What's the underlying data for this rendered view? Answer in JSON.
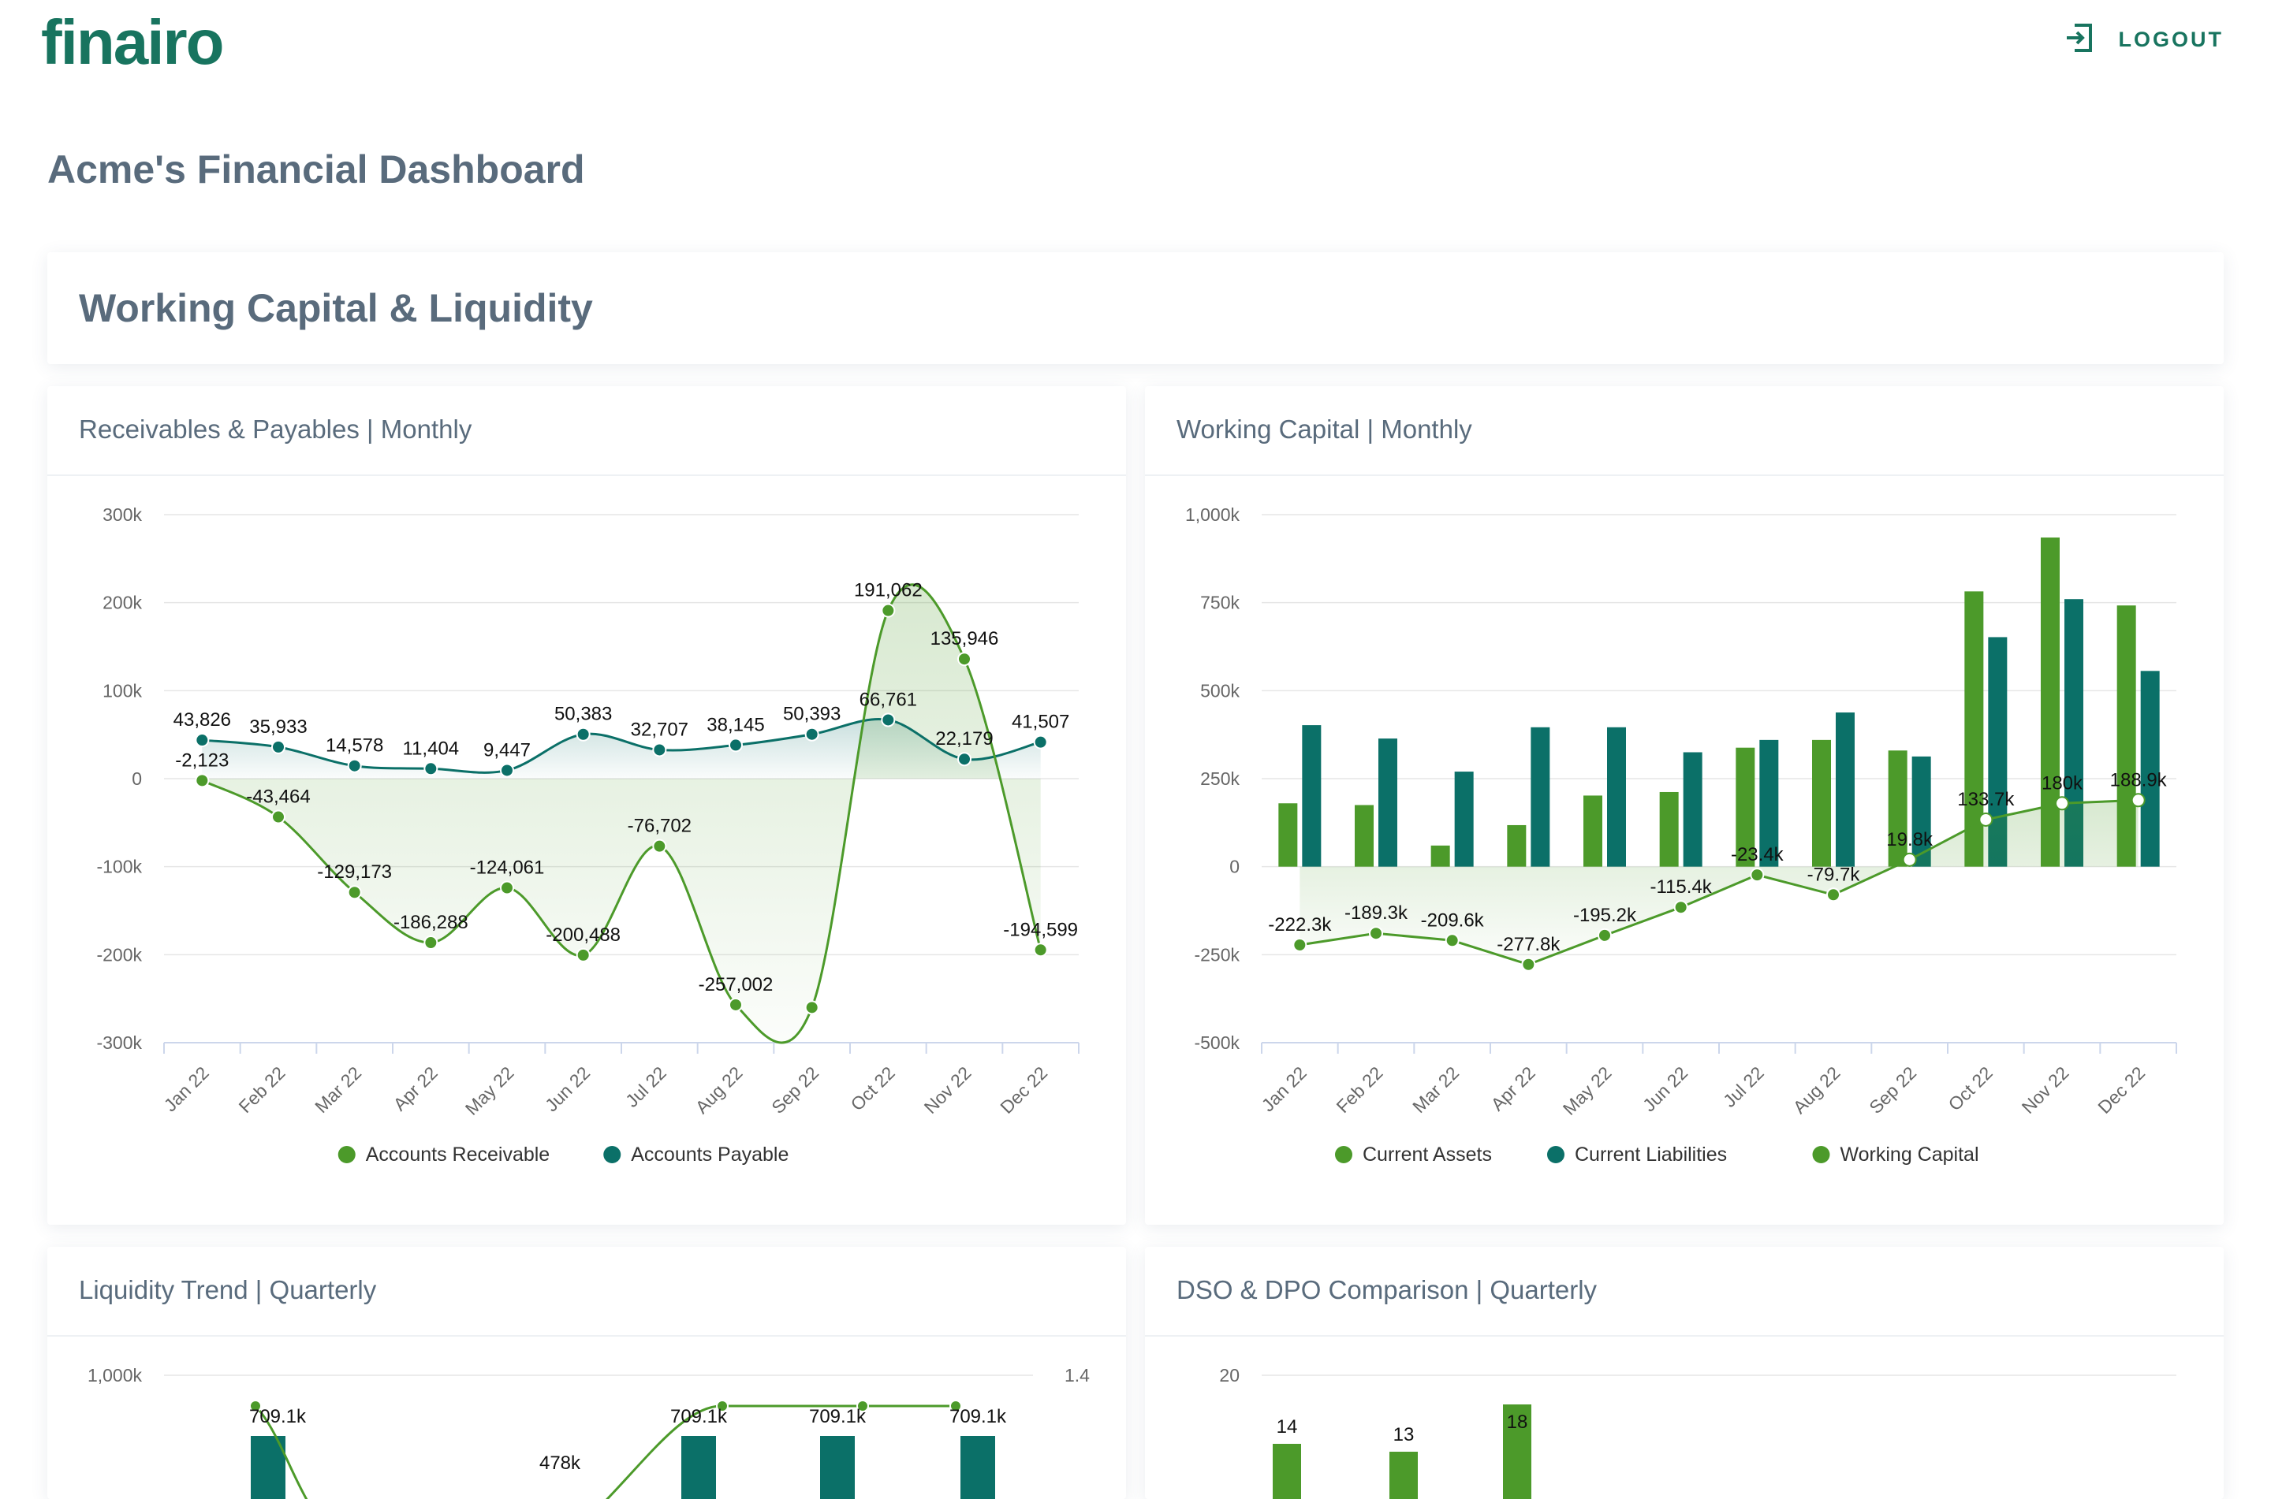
{
  "brand": {
    "logo_text": "finairo"
  },
  "nav": {
    "logout_label": "LOGOUT"
  },
  "page": {
    "title": "Acme's Financial Dashboard"
  },
  "section": {
    "title": "Working Capital & Liquidity"
  },
  "colors": {
    "green": "#4c9a2a",
    "teal": "#0b7068",
    "brand": "#18745f",
    "heading": "#596b7c"
  },
  "cards": {
    "receivables_payables": {
      "title": "Receivables & Payables | Monthly"
    },
    "working_capital": {
      "title": "Working Capital | Monthly"
    },
    "liquidity_trend": {
      "title": "Liquidity Trend | Quarterly"
    },
    "dso_dpo": {
      "title": "DSO & DPO Comparison | Quarterly"
    }
  },
  "chart_data": [
    {
      "id": "receivables_payables",
      "type": "area",
      "title": "Receivables & Payables | Monthly",
      "categories": [
        "Jan 22",
        "Feb 22",
        "Mar 22",
        "Apr 22",
        "May 22",
        "Jun 22",
        "Jul 22",
        "Aug 22",
        "Sep 22",
        "Oct 22",
        "Nov 22",
        "Dec 22"
      ],
      "y_ticks": [
        "300k",
        "200k",
        "100k",
        "0",
        "-100k",
        "-200k",
        "-300k"
      ],
      "ylim": [
        -300000,
        300000
      ],
      "series": [
        {
          "name": "Accounts Receivable",
          "color": "#4c9a2a",
          "values": [
            -2123,
            -43464,
            -129173,
            -186288,
            -124061,
            -200488,
            -76702,
            -257002,
            -260000,
            191062,
            135946,
            -194599
          ],
          "labels": [
            "-2,123",
            "-43,464",
            "-129,173",
            "-186,288",
            "-124,061",
            "-200,488",
            "-76,702",
            "-257,002",
            "",
            "191,062",
            "135,946",
            "-194,599"
          ]
        },
        {
          "name": "Accounts Payable",
          "color": "#0b7068",
          "values": [
            43826,
            35933,
            14578,
            11404,
            9447,
            50383,
            32707,
            38145,
            50393,
            66761,
            22179,
            41507
          ],
          "labels": [
            "43,826",
            "35,933",
            "14,578",
            "11,404",
            "9,447",
            "50,383",
            "32,707",
            "38,145",
            "50,393",
            "66,761",
            "22,179",
            "41,507"
          ]
        }
      ],
      "legend": [
        "Accounts Receivable",
        "Accounts Payable"
      ]
    },
    {
      "id": "working_capital",
      "type": "bar",
      "title": "Working Capital | Monthly",
      "categories": [
        "Jan 22",
        "Feb 22",
        "Mar 22",
        "Apr 22",
        "May 22",
        "Jun 22",
        "Jul 22",
        "Aug 22",
        "Sep 22",
        "Oct 22",
        "Nov 22",
        "Dec 22"
      ],
      "y_ticks": [
        "1,000k",
        "750k",
        "500k",
        "250k",
        "0",
        "-250k",
        "-500k"
      ],
      "ylim": [
        -500,
        1000
      ],
      "series": [
        {
          "name": "Current Assets",
          "color": "#4c9a2a",
          "kind": "bar",
          "values": [
            180,
            175,
            60,
            118,
            202,
            212,
            338,
            360,
            330,
            782,
            935,
            742
          ]
        },
        {
          "name": "Current Liabilities",
          "color": "#0b7068",
          "kind": "bar",
          "values": [
            402,
            364,
            270,
            396,
            396,
            325,
            360,
            438,
            313,
            652,
            760,
            556
          ]
        },
        {
          "name": "Working Capital",
          "color": "#4c9a2a",
          "kind": "line",
          "values": [
            -222.3,
            -189.3,
            -209.6,
            -277.8,
            -195.2,
            -115.4,
            -23.4,
            -79.7,
            19.8,
            133.7,
            180,
            188.9
          ],
          "labels": [
            "-222.3k",
            "-189.3k",
            "-209.6k",
            "-277.8k",
            "-195.2k",
            "-115.4k",
            "-23.4k",
            "-79.7k",
            "19.8k",
            "133.7k",
            "180k",
            "188.9k"
          ]
        }
      ],
      "legend": [
        "Current Assets",
        "Current Liabilities",
        "Working Capital"
      ]
    },
    {
      "id": "liquidity_trend",
      "type": "bar",
      "title": "Liquidity Trend | Quarterly",
      "y_ticks_left": [
        "1,000k"
      ],
      "y_ticks_right": [
        "1.4"
      ],
      "labels": [
        "709.1k",
        "478k",
        "709.1k",
        "709.1k",
        "709.1k"
      ]
    },
    {
      "id": "dso_dpo",
      "type": "bar",
      "title": "DSO & DPO Comparison | Quarterly",
      "y_ticks": [
        "20"
      ],
      "values": [
        14,
        13,
        18
      ]
    }
  ]
}
